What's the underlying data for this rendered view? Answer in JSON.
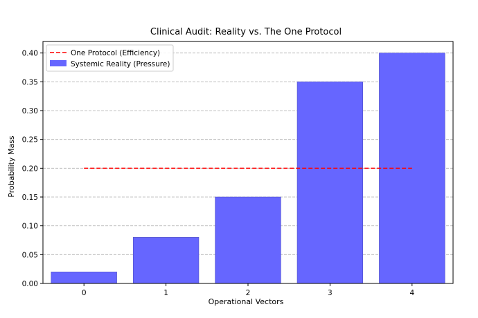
{
  "chart_data": {
    "type": "bar",
    "title": "Clinical Audit: Reality vs. The One Protocol",
    "xlabel": "Operational Vectors",
    "ylabel": "Probability Mass",
    "categories": [
      "0",
      "1",
      "2",
      "3",
      "4"
    ],
    "x": [
      0,
      1,
      2,
      3,
      4
    ],
    "xlim": [
      -0.5,
      4.5
    ],
    "ylim": [
      0,
      0.42
    ],
    "yticks": [
      0.0,
      0.05,
      0.1,
      0.15,
      0.2,
      0.25,
      0.3,
      0.35,
      0.4
    ],
    "ytick_labels": [
      "0.00",
      "0.05",
      "0.10",
      "0.15",
      "0.20",
      "0.25",
      "0.30",
      "0.35",
      "0.40"
    ],
    "grid": "y-dashed",
    "legend_position": "top-left",
    "series": [
      {
        "name": "Systemic Reality (Pressure)",
        "kind": "bar",
        "values": [
          0.02,
          0.08,
          0.15,
          0.35,
          0.4
        ],
        "color": "#6666ff"
      },
      {
        "name": "One Protocol (Efficiency)",
        "kind": "line",
        "style": "dashed",
        "values": [
          0.2,
          0.2,
          0.2,
          0.2,
          0.2
        ],
        "color": "#ff0000"
      }
    ]
  }
}
